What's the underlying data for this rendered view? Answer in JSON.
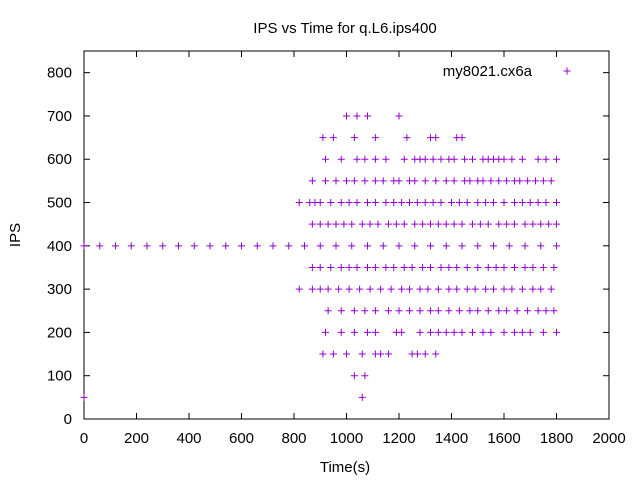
{
  "chart_data": {
    "type": "scatter",
    "title": "IPS vs Time for q.L6.ips400",
    "xlabel": "Time(s)",
    "ylabel": "IPS",
    "xlim": [
      0,
      2000
    ],
    "ylim": [
      0,
      850
    ],
    "x_ticks": [
      0,
      200,
      400,
      600,
      800,
      1000,
      1200,
      1400,
      1600,
      1800,
      2000
    ],
    "y_ticks": [
      0,
      100,
      200,
      300,
      400,
      500,
      600,
      700,
      800
    ],
    "x_tick_labels": [
      "0",
      "200",
      "400",
      "600",
      "800",
      "1000",
      "1200",
      "1400",
      "1600",
      "1800",
      "2000"
    ],
    "y_tick_labels": [
      "0",
      "100",
      "200",
      "300",
      "400",
      "500",
      "600",
      "700",
      "800"
    ],
    "grid": false,
    "legend_position": "top-right",
    "marker": "plus",
    "series": [
      {
        "name": "my8021.cx6a",
        "color": "#9400d3",
        "points": [
          [
            0,
            50
          ],
          [
            1000,
            700
          ],
          [
            1040,
            700
          ],
          [
            1080,
            700
          ],
          [
            1200,
            700
          ],
          [
            910,
            650
          ],
          [
            950,
            650
          ],
          [
            1030,
            650
          ],
          [
            1110,
            650
          ],
          [
            1230,
            650
          ],
          [
            1320,
            650
          ],
          [
            1340,
            650
          ],
          [
            1420,
            650
          ],
          [
            1440,
            650
          ],
          [
            920,
            600
          ],
          [
            980,
            600
          ],
          [
            1040,
            600
          ],
          [
            1070,
            600
          ],
          [
            1110,
            600
          ],
          [
            1150,
            600
          ],
          [
            1220,
            600
          ],
          [
            1260,
            600
          ],
          [
            1280,
            600
          ],
          [
            1300,
            600
          ],
          [
            1330,
            600
          ],
          [
            1360,
            600
          ],
          [
            1390,
            600
          ],
          [
            1410,
            600
          ],
          [
            1450,
            600
          ],
          [
            1480,
            600
          ],
          [
            1520,
            600
          ],
          [
            1540,
            600
          ],
          [
            1560,
            600
          ],
          [
            1580,
            600
          ],
          [
            1600,
            600
          ],
          [
            1630,
            600
          ],
          [
            1670,
            600
          ],
          [
            1730,
            600
          ],
          [
            1760,
            600
          ],
          [
            1800,
            600
          ],
          [
            870,
            550
          ],
          [
            920,
            550
          ],
          [
            960,
            550
          ],
          [
            1000,
            550
          ],
          [
            1030,
            550
          ],
          [
            1070,
            550
          ],
          [
            1110,
            550
          ],
          [
            1140,
            550
          ],
          [
            1180,
            550
          ],
          [
            1200,
            550
          ],
          [
            1240,
            550
          ],
          [
            1260,
            550
          ],
          [
            1300,
            550
          ],
          [
            1340,
            550
          ],
          [
            1380,
            550
          ],
          [
            1410,
            550
          ],
          [
            1450,
            550
          ],
          [
            1470,
            550
          ],
          [
            1500,
            550
          ],
          [
            1520,
            550
          ],
          [
            1550,
            550
          ],
          [
            1580,
            550
          ],
          [
            1610,
            550
          ],
          [
            1640,
            550
          ],
          [
            1660,
            550
          ],
          [
            1690,
            550
          ],
          [
            1720,
            550
          ],
          [
            1750,
            550
          ],
          [
            1780,
            550
          ],
          [
            820,
            500
          ],
          [
            860,
            500
          ],
          [
            880,
            500
          ],
          [
            900,
            500
          ],
          [
            940,
            500
          ],
          [
            980,
            500
          ],
          [
            1010,
            500
          ],
          [
            1040,
            500
          ],
          [
            1080,
            500
          ],
          [
            1110,
            500
          ],
          [
            1150,
            500
          ],
          [
            1180,
            500
          ],
          [
            1210,
            500
          ],
          [
            1240,
            500
          ],
          [
            1270,
            500
          ],
          [
            1300,
            500
          ],
          [
            1330,
            500
          ],
          [
            1360,
            500
          ],
          [
            1400,
            500
          ],
          [
            1430,
            500
          ],
          [
            1460,
            500
          ],
          [
            1500,
            500
          ],
          [
            1530,
            500
          ],
          [
            1560,
            500
          ],
          [
            1600,
            500
          ],
          [
            1640,
            500
          ],
          [
            1670,
            500
          ],
          [
            1700,
            500
          ],
          [
            1730,
            500
          ],
          [
            1760,
            500
          ],
          [
            1800,
            500
          ],
          [
            870,
            450
          ],
          [
            900,
            450
          ],
          [
            930,
            450
          ],
          [
            960,
            450
          ],
          [
            990,
            450
          ],
          [
            1020,
            450
          ],
          [
            1060,
            450
          ],
          [
            1090,
            450
          ],
          [
            1120,
            450
          ],
          [
            1160,
            450
          ],
          [
            1190,
            450
          ],
          [
            1220,
            450
          ],
          [
            1260,
            450
          ],
          [
            1290,
            450
          ],
          [
            1320,
            450
          ],
          [
            1350,
            450
          ],
          [
            1380,
            450
          ],
          [
            1410,
            450
          ],
          [
            1440,
            450
          ],
          [
            1480,
            450
          ],
          [
            1510,
            450
          ],
          [
            1540,
            450
          ],
          [
            1580,
            450
          ],
          [
            1610,
            450
          ],
          [
            1640,
            450
          ],
          [
            1680,
            450
          ],
          [
            1710,
            450
          ],
          [
            1740,
            450
          ],
          [
            1770,
            450
          ],
          [
            1800,
            450
          ],
          [
            0,
            400
          ],
          [
            60,
            400
          ],
          [
            120,
            400
          ],
          [
            180,
            400
          ],
          [
            240,
            400
          ],
          [
            300,
            400
          ],
          [
            360,
            400
          ],
          [
            420,
            400
          ],
          [
            480,
            400
          ],
          [
            540,
            400
          ],
          [
            600,
            400
          ],
          [
            660,
            400
          ],
          [
            720,
            400
          ],
          [
            780,
            400
          ],
          [
            840,
            400
          ],
          [
            900,
            400
          ],
          [
            960,
            400
          ],
          [
            1020,
            400
          ],
          [
            1080,
            400
          ],
          [
            1140,
            400
          ],
          [
            1200,
            400
          ],
          [
            1260,
            400
          ],
          [
            1320,
            400
          ],
          [
            1380,
            400
          ],
          [
            1440,
            400
          ],
          [
            1500,
            400
          ],
          [
            1560,
            400
          ],
          [
            1620,
            400
          ],
          [
            1680,
            400
          ],
          [
            1740,
            400
          ],
          [
            1800,
            400
          ],
          [
            870,
            350
          ],
          [
            900,
            350
          ],
          [
            940,
            350
          ],
          [
            980,
            350
          ],
          [
            1010,
            350
          ],
          [
            1040,
            350
          ],
          [
            1080,
            350
          ],
          [
            1110,
            350
          ],
          [
            1150,
            350
          ],
          [
            1180,
            350
          ],
          [
            1220,
            350
          ],
          [
            1250,
            350
          ],
          [
            1290,
            350
          ],
          [
            1320,
            350
          ],
          [
            1360,
            350
          ],
          [
            1390,
            350
          ],
          [
            1420,
            350
          ],
          [
            1460,
            350
          ],
          [
            1500,
            350
          ],
          [
            1540,
            350
          ],
          [
            1570,
            350
          ],
          [
            1600,
            350
          ],
          [
            1640,
            350
          ],
          [
            1680,
            350
          ],
          [
            1710,
            350
          ],
          [
            1750,
            350
          ],
          [
            1790,
            350
          ],
          [
            820,
            300
          ],
          [
            870,
            300
          ],
          [
            900,
            300
          ],
          [
            930,
            300
          ],
          [
            970,
            300
          ],
          [
            1010,
            300
          ],
          [
            1050,
            300
          ],
          [
            1090,
            300
          ],
          [
            1130,
            300
          ],
          [
            1170,
            300
          ],
          [
            1210,
            300
          ],
          [
            1240,
            300
          ],
          [
            1280,
            300
          ],
          [
            1310,
            300
          ],
          [
            1350,
            300
          ],
          [
            1390,
            300
          ],
          [
            1420,
            300
          ],
          [
            1460,
            300
          ],
          [
            1490,
            300
          ],
          [
            1530,
            300
          ],
          [
            1560,
            300
          ],
          [
            1600,
            300
          ],
          [
            1630,
            300
          ],
          [
            1670,
            300
          ],
          [
            1710,
            300
          ],
          [
            1740,
            300
          ],
          [
            1780,
            300
          ],
          [
            930,
            250
          ],
          [
            980,
            250
          ],
          [
            1030,
            250
          ],
          [
            1070,
            250
          ],
          [
            1110,
            250
          ],
          [
            1160,
            250
          ],
          [
            1200,
            250
          ],
          [
            1240,
            250
          ],
          [
            1280,
            250
          ],
          [
            1320,
            250
          ],
          [
            1350,
            250
          ],
          [
            1390,
            250
          ],
          [
            1430,
            250
          ],
          [
            1470,
            250
          ],
          [
            1500,
            250
          ],
          [
            1540,
            250
          ],
          [
            1580,
            250
          ],
          [
            1610,
            250
          ],
          [
            1650,
            250
          ],
          [
            1690,
            250
          ],
          [
            1730,
            250
          ],
          [
            1760,
            250
          ],
          [
            1790,
            250
          ],
          [
            920,
            200
          ],
          [
            980,
            200
          ],
          [
            1030,
            200
          ],
          [
            1080,
            200
          ],
          [
            1110,
            200
          ],
          [
            1190,
            200
          ],
          [
            1210,
            200
          ],
          [
            1280,
            200
          ],
          [
            1320,
            200
          ],
          [
            1350,
            200
          ],
          [
            1380,
            200
          ],
          [
            1410,
            200
          ],
          [
            1440,
            200
          ],
          [
            1480,
            200
          ],
          [
            1520,
            200
          ],
          [
            1550,
            200
          ],
          [
            1600,
            200
          ],
          [
            1640,
            200
          ],
          [
            1670,
            200
          ],
          [
            1700,
            200
          ],
          [
            1750,
            200
          ],
          [
            1800,
            200
          ],
          [
            910,
            150
          ],
          [
            950,
            150
          ],
          [
            1000,
            150
          ],
          [
            1060,
            150
          ],
          [
            1110,
            150
          ],
          [
            1130,
            150
          ],
          [
            1160,
            150
          ],
          [
            1250,
            150
          ],
          [
            1270,
            150
          ],
          [
            1300,
            150
          ],
          [
            1340,
            150
          ],
          [
            1030,
            100
          ],
          [
            1070,
            100
          ],
          [
            1060,
            50
          ]
        ]
      }
    ]
  }
}
